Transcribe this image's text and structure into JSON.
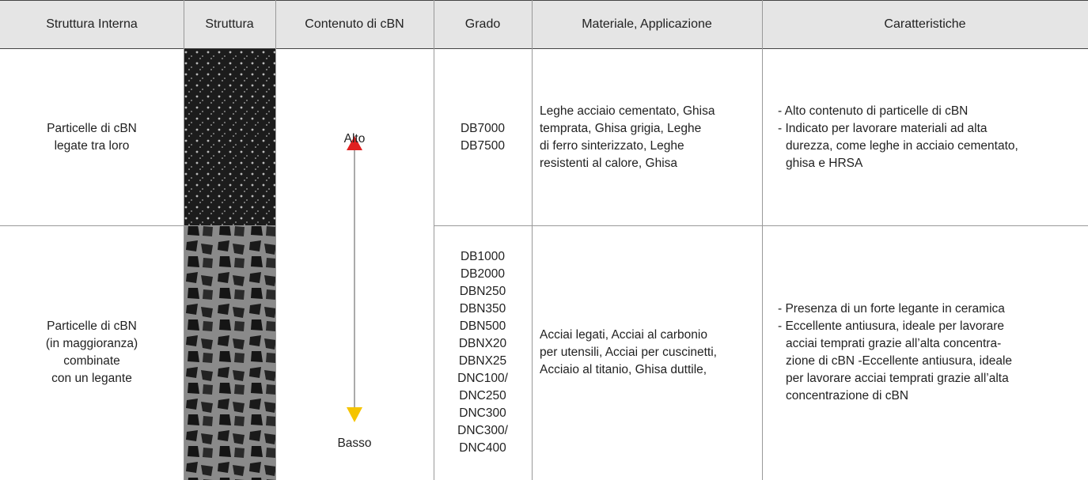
{
  "table": {
    "headers": [
      "Struttura Interna",
      "Struttura",
      "Contenuto di cBN",
      "Grado",
      "Materiale, Applicazione",
      "Caratteristiche"
    ],
    "content_scale": {
      "high": "Alto",
      "low": "Basso"
    },
    "rows": [
      {
        "internal_structure": [
          "Particelle di cBN",
          "legate tra loro"
        ],
        "grades": [
          "DB7000",
          "DB7500"
        ],
        "applications": [
          "Leghe acciaio cementato, Ghisa",
          "temprata, Ghisa grigia, Leghe",
          "di ferro sinterizzato, Leghe",
          "resistenti al calore, Ghisa"
        ],
        "features": [
          [
            "- Alto contenuto di particelle di cBN"
          ],
          [
            "- Indicato per lavorare materiali ad alta",
            "durezza, come leghe in acciaio cementato,",
            "ghisa e HRSA"
          ]
        ]
      },
      {
        "internal_structure": [
          "Particelle di cBN",
          "(in maggioranza)",
          "combinate",
          "con un legante"
        ],
        "grades": [
          "DB1000",
          "DB2000",
          "DBN250",
          "DBN350",
          "DBN500",
          "DBNX20",
          "DBNX25",
          "DNC100/",
          "DNC250",
          "DNC300",
          "DNC300/",
          "DNC400"
        ],
        "applications": [
          "Acciai legati, Acciai al carbonio",
          "per utensili, Acciai per cuscinetti,",
          "Acciaio al titanio, Ghisa duttile,"
        ],
        "features": [
          [
            "- Presenza di un forte legante in ceramica"
          ],
          [
            "- Eccellente antiusura, ideale per lavorare",
            "acciai temprati grazie all’alta concentra-",
            "zione di cBN -Eccellente antiusura, ideale",
            "per lavorare acciai temprati grazie all’alta",
            "concentrazione di cBN"
          ]
        ]
      }
    ]
  }
}
